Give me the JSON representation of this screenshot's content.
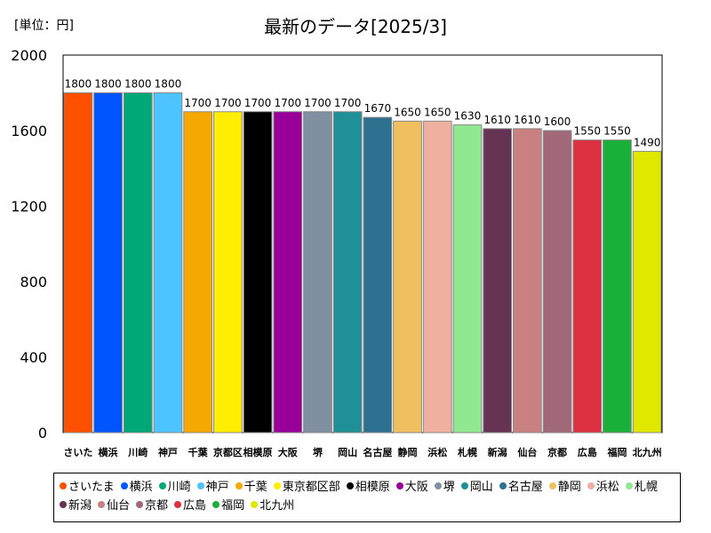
{
  "unit_label": "[単位：円]",
  "chart_data": {
    "type": "bar",
    "title": "最新のデータ[2025/3]",
    "ylim": [
      0,
      2000
    ],
    "yticks": [
      0,
      400,
      800,
      1200,
      1600,
      2000
    ],
    "grid": false,
    "legend_position": "bottom",
    "categories": [
      "さいたま",
      "横浜",
      "川崎",
      "神戸",
      "千葉",
      "東京都区部",
      "相模原",
      "大阪",
      "堺",
      "岡山",
      "名古屋",
      "静岡",
      "浜松",
      "札幌",
      "新潟",
      "仙台",
      "京都",
      "広島",
      "福岡",
      "北九州"
    ],
    "tick_labels": [
      "さいた",
      "横浜",
      "川崎",
      "神戸",
      "千葉",
      "京都区",
      "相模原",
      "大阪",
      "堺",
      "岡山",
      "名古屋",
      "静岡",
      "浜松",
      "札幌",
      "新潟",
      "仙台",
      "京都",
      "広島",
      "福岡",
      "北九州"
    ],
    "values": [
      1800,
      1800,
      1800,
      1800,
      1700,
      1700,
      1700,
      1700,
      1700,
      1700,
      1670,
      1650,
      1650,
      1630,
      1610,
      1610,
      1600,
      1550,
      1550,
      1490
    ],
    "colors": [
      "#ff5000",
      "#0055ff",
      "#00a878",
      "#4dc3ff",
      "#f5a800",
      "#ffee00",
      "#000000",
      "#990099",
      "#8090a0",
      "#1f9098",
      "#2e7090",
      "#f0c060",
      "#f0b0a0",
      "#90e890",
      "#663355",
      "#c88080",
      "#a06878",
      "#dd3040",
      "#18b038",
      "#e0e800"
    ]
  },
  "legend": {
    "items": [
      "さいたま",
      "横浜",
      "川崎",
      "神戸",
      "千葉",
      "東京都区部",
      "相模原",
      "大阪",
      "堺",
      "岡山",
      "名古屋",
      "静岡",
      "浜松",
      "札幌",
      "新潟",
      "仙台",
      "京都",
      "広島",
      "福岡",
      "北九州"
    ]
  }
}
